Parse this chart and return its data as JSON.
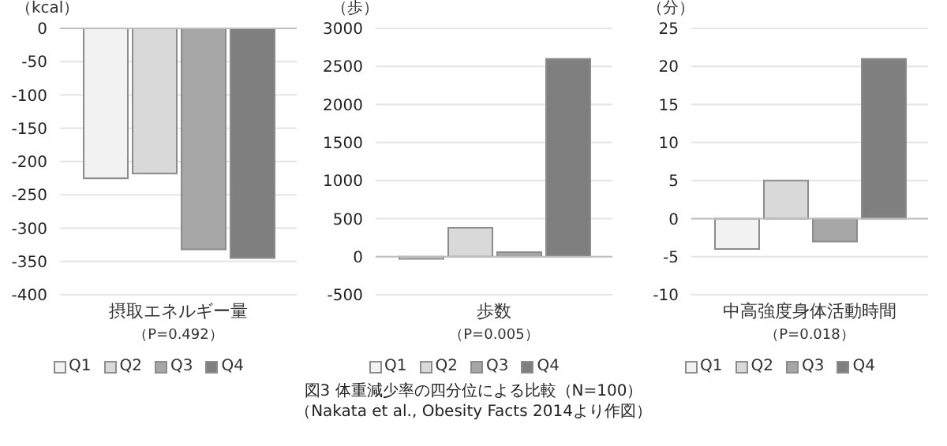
{
  "chart_data": [
    {
      "type": "bar",
      "ylabel": "（kcal）",
      "xlabel": "摂取エネルギー量",
      "annotations": [
        "（P=0.492）"
      ],
      "categories": [
        null
      ],
      "ylim": [
        -400,
        0
      ],
      "yticks": [
        -400,
        -350,
        -300,
        -250,
        -200,
        -150,
        -100,
        -50,
        0
      ],
      "grid": "y",
      "legend": "bottom",
      "series": [
        {
          "name": "Q1",
          "color": "#f2f2f2",
          "values": [
            -225
          ]
        },
        {
          "name": "Q2",
          "color": "#d9d9d9",
          "values": [
            -218
          ]
        },
        {
          "name": "Q3",
          "color": "#a6a6a6",
          "values": [
            -332
          ]
        },
        {
          "name": "Q4",
          "color": "#7f7f7f",
          "values": [
            -345
          ]
        }
      ]
    },
    {
      "type": "bar",
      "ylabel": "（歩）",
      "xlabel": "歩数",
      "annotations": [
        "（P=0.005）"
      ],
      "categories": [
        null
      ],
      "ylim": [
        -500,
        3000
      ],
      "yticks": [
        -500,
        0,
        500,
        1000,
        1500,
        2000,
        2500,
        3000
      ],
      "grid": "y",
      "legend": "bottom",
      "series": [
        {
          "name": "Q1",
          "color": "#f2f2f2",
          "values": [
            -30
          ]
        },
        {
          "name": "Q2",
          "color": "#d9d9d9",
          "values": [
            380
          ]
        },
        {
          "name": "Q3",
          "color": "#a6a6a6",
          "values": [
            60
          ]
        },
        {
          "name": "Q4",
          "color": "#7f7f7f",
          "values": [
            2600
          ]
        }
      ]
    },
    {
      "type": "bar",
      "ylabel": "（分）",
      "xlabel": "中高強度身体活動時間",
      "annotations": [
        "（P=0.018）"
      ],
      "categories": [
        null
      ],
      "ylim": [
        -10,
        25
      ],
      "yticks": [
        -10,
        -5,
        0,
        5,
        10,
        15,
        20,
        25
      ],
      "grid": "y",
      "legend": "bottom",
      "series": [
        {
          "name": "Q1",
          "color": "#f2f2f2",
          "values": [
            -4
          ]
        },
        {
          "name": "Q2",
          "color": "#d9d9d9",
          "values": [
            5
          ]
        },
        {
          "name": "Q3",
          "color": "#a6a6a6",
          "values": [
            -3
          ]
        },
        {
          "name": "Q4",
          "color": "#7f7f7f",
          "values": [
            21
          ]
        }
      ]
    },
    {
      "type": "other",
      "title": "図3  体重減少率の四分位による比較（N=100）",
      "annotations": [
        "（Nakata et al., Obesity Facts 2014より作図）"
      ]
    }
  ]
}
